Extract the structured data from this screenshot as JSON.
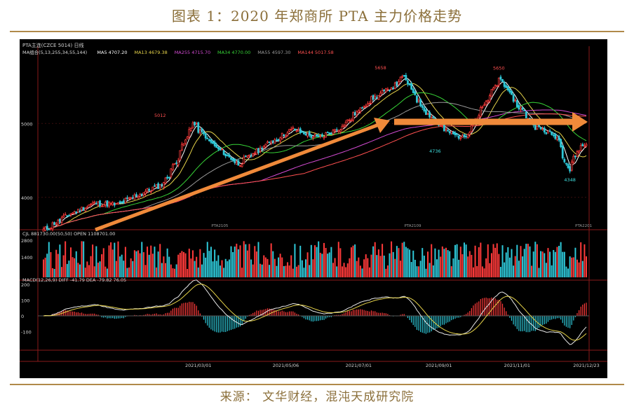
{
  "figure": {
    "title": "图表 1：2020 年郑商所 PTA 主力价格走势",
    "source": "来源： 文华财经，混沌天成研究院"
  },
  "chart_data": {
    "type": "candlestick",
    "header": "PTA主连(CZCE 5014)  日线",
    "ma_legend": [
      {
        "text": "MA组合(5,13,255,34,55,144)",
        "color": "#d8d8d8"
      },
      {
        "text": "MA5 4707.20",
        "color": "#ffffff"
      },
      {
        "text": "MA13 4679.38",
        "color": "#e6d34a"
      },
      {
        "text": "MA255 4715.70",
        "color": "#d24bd2"
      },
      {
        "text": "MA34 4770.00",
        "color": "#37d437"
      },
      {
        "text": "MA55 4597.30",
        "color": "#9a9a9a"
      },
      {
        "text": "MA144 5017.58",
        "color": "#ff5050"
      }
    ],
    "ylim": [
      3600,
      5950
    ],
    "y_ticks": [
      4000,
      5000
    ],
    "price_annotations": [
      {
        "label": "5012",
        "value": 5012,
        "color": "#ff5050"
      },
      {
        "label": "5658",
        "value": 5658,
        "color": "#ff5050"
      },
      {
        "label": "5650",
        "value": 5650,
        "color": "#ff5050"
      },
      {
        "label": "4736",
        "value": 4736,
        "color": "#40e0e0"
      },
      {
        "label": "4348",
        "value": 4348,
        "color": "#40e0e0"
      }
    ],
    "contract_labels": [
      "PTA2105",
      "PTA2109",
      "PTA2201"
    ],
    "x_dates": [
      "2021/03/01",
      "2021/05/06",
      "2021/07/01",
      "2021/09/01",
      "2021/11/01",
      "2021/12/23"
    ],
    "volume_panel": {
      "legend": "CJL  881730.00(50,50)  OPEN  1108701.00",
      "ticks": [
        "2800",
        "1400"
      ]
    },
    "macd_panel": {
      "legend": "MACD(12,26,9)  DIFF -41.79  DEA -79.82  76.05",
      "ylim": [
        -200,
        200
      ],
      "ticks": [
        200,
        100,
        0,
        -100
      ]
    },
    "close_anchors": [
      {
        "date": "2020-11-02",
        "close": 3560
      },
      {
        "date": "2020-11-20",
        "close": 3760
      },
      {
        "date": "2020-12-10",
        "close": 3920
      },
      {
        "date": "2020-12-28",
        "close": 3900
      },
      {
        "date": "2021-01-15",
        "close": 4050
      },
      {
        "date": "2021-02-01",
        "close": 4180
      },
      {
        "date": "2021-02-10",
        "close": 4450
      },
      {
        "date": "2021-02-24",
        "close": 5000
      },
      {
        "date": "2021-03-12",
        "close": 4700
      },
      {
        "date": "2021-03-31",
        "close": 4450
      },
      {
        "date": "2021-04-20",
        "close": 4700
      },
      {
        "date": "2021-05-12",
        "close": 4920
      },
      {
        "date": "2021-05-31",
        "close": 4800
      },
      {
        "date": "2021-06-18",
        "close": 4950
      },
      {
        "date": "2021-07-09",
        "close": 5300
      },
      {
        "date": "2021-07-28",
        "close": 5500
      },
      {
        "date": "2021-08-05",
        "close": 5630
      },
      {
        "date": "2021-08-20",
        "close": 5200
      },
      {
        "date": "2021-09-06",
        "close": 4900
      },
      {
        "date": "2021-09-20",
        "close": 4800
      },
      {
        "date": "2021-10-08",
        "close": 5300
      },
      {
        "date": "2021-10-18",
        "close": 5620
      },
      {
        "date": "2021-10-29",
        "close": 5300
      },
      {
        "date": "2021-11-15",
        "close": 4950
      },
      {
        "date": "2021-12-01",
        "close": 4820
      },
      {
        "date": "2021-12-10",
        "close": 4360
      },
      {
        "date": "2021-12-17",
        "close": 4650
      },
      {
        "date": "2021-12-23",
        "close": 4720
      }
    ],
    "colors": {
      "up": "#ff3a3a",
      "down": "#2ec8d8",
      "arrow": "#f08a3a",
      "bg": "#000000"
    }
  }
}
